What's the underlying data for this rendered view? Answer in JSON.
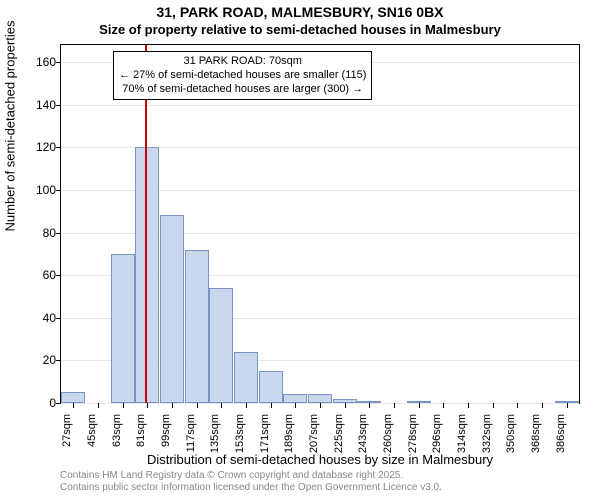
{
  "chart": {
    "type": "histogram",
    "title_line1": "31, PARK ROAD, MALMESBURY, SN16 0BX",
    "title_line2": "Size of property relative to semi-detached houses in Malmesbury",
    "ylabel": "Number of semi-detached properties",
    "xlabel": "Distribution of semi-detached houses by size in Malmesbury",
    "title_fontsize": 14,
    "subtitle_fontsize": 13,
    "axis_label_fontsize": 13,
    "tick_fontsize": 12,
    "background_color": "#ffffff",
    "grid_color": "#e8e8e8",
    "bar_fill": "#c9d7ef",
    "bar_stroke": "#7a94c4",
    "marker_color": "#cc0000",
    "ylim": [
      0,
      168
    ],
    "yticks": [
      0,
      20,
      40,
      60,
      80,
      100,
      120,
      140,
      160
    ],
    "xticks": [
      "27sqm",
      "45sqm",
      "63sqm",
      "81sqm",
      "99sqm",
      "117sqm",
      "135sqm",
      "153sqm",
      "171sqm",
      "189sqm",
      "207sqm",
      "225sqm",
      "243sqm",
      "260sqm",
      "278sqm",
      "296sqm",
      "314sqm",
      "332sqm",
      "350sqm",
      "368sqm",
      "386sqm"
    ],
    "bars": [
      5,
      0,
      70,
      120,
      88,
      72,
      54,
      24,
      15,
      4,
      4,
      2,
      1,
      0,
      1,
      0,
      0,
      0,
      0,
      0,
      1
    ],
    "marker_position": 3.4,
    "annotation": {
      "line1": "← 27% of semi-detached houses are smaller (115)",
      "line2": "31 PARK ROAD: 70sqm",
      "line3": "70% of semi-detached houses are larger (300) →"
    },
    "footer_line1": "Contains HM Land Registry data © Crown copyright and database right 2025.",
    "footer_line2": "Contains public sector information licensed under the Open Government Licence v3.0."
  }
}
